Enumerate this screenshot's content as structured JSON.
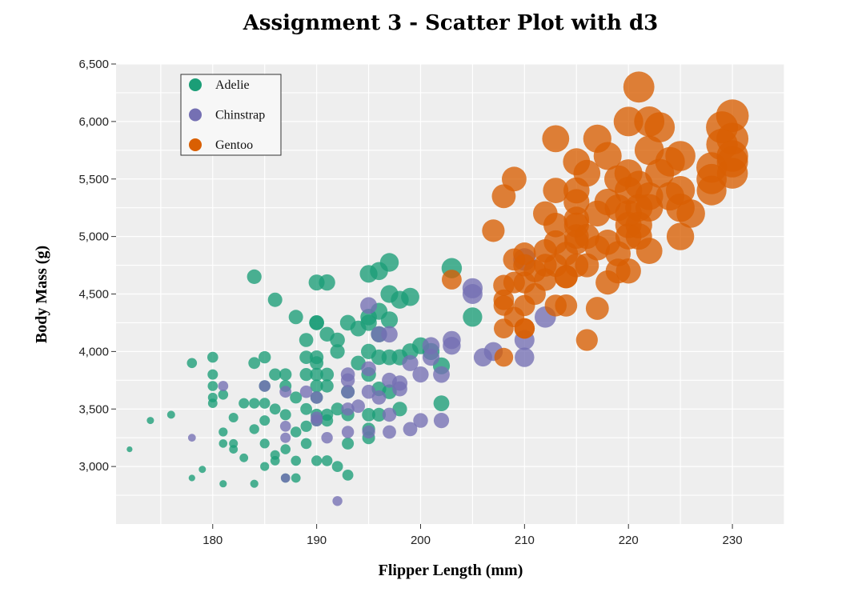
{
  "chart_data": {
    "type": "scatter",
    "title": "Assignment 3 - Scatter Plot with d3",
    "xlabel": "Flipper Length (mm)",
    "ylabel": "Body Mass (g)",
    "xlim": [
      170.7,
      235
    ],
    "ylim": [
      2500,
      6500
    ],
    "x_ticks": [
      180,
      190,
      200,
      210,
      220,
      230
    ],
    "y_ticks": [
      3000,
      3500,
      4000,
      4500,
      5000,
      5500,
      6000,
      6500
    ],
    "x_tick_labels": [
      "180",
      "190",
      "200",
      "210",
      "220",
      "230"
    ],
    "y_tick_labels": [
      "3,000",
      "3,500",
      "4,000",
      "4,500",
      "5,000",
      "5,500",
      "6,000",
      "6,500"
    ],
    "grid": true,
    "legend_position": "top-left",
    "size_encoding": "radius grows with data magnitude",
    "series": [
      {
        "name": "Adelie",
        "color": "#1b9e77",
        "points": [
          [
            172,
            3150
          ],
          [
            174,
            3400
          ],
          [
            176,
            3450
          ],
          [
            178,
            3900
          ],
          [
            178,
            2900
          ],
          [
            179,
            2975
          ],
          [
            180,
            3950
          ],
          [
            180,
            3800
          ],
          [
            180,
            3700
          ],
          [
            180,
            3600
          ],
          [
            180,
            3550
          ],
          [
            181,
            3625
          ],
          [
            181,
            3300
          ],
          [
            181,
            3200
          ],
          [
            181,
            2850
          ],
          [
            182,
            3425
          ],
          [
            182,
            3200
          ],
          [
            182,
            3150
          ],
          [
            183,
            3550
          ],
          [
            183,
            3075
          ],
          [
            184,
            4650
          ],
          [
            184,
            3900
          ],
          [
            184,
            3550
          ],
          [
            184,
            3325
          ],
          [
            184,
            2850
          ],
          [
            185,
            3950
          ],
          [
            185,
            3700
          ],
          [
            185,
            3550
          ],
          [
            185,
            3400
          ],
          [
            185,
            3200
          ],
          [
            185,
            3000
          ],
          [
            186,
            4450
          ],
          [
            186,
            3800
          ],
          [
            186,
            3500
          ],
          [
            186,
            3100
          ],
          [
            186,
            3050
          ],
          [
            187,
            3800
          ],
          [
            187,
            3700
          ],
          [
            187,
            3450
          ],
          [
            187,
            3150
          ],
          [
            187,
            2900
          ],
          [
            188,
            4300
          ],
          [
            188,
            3600
          ],
          [
            188,
            3300
          ],
          [
            188,
            3050
          ],
          [
            188,
            2900
          ],
          [
            189,
            4100
          ],
          [
            189,
            3950
          ],
          [
            189,
            3800
          ],
          [
            189,
            3500
          ],
          [
            189,
            3350
          ],
          [
            189,
            3200
          ],
          [
            190,
            4600
          ],
          [
            190,
            4250
          ],
          [
            190,
            4250
          ],
          [
            190,
            3950
          ],
          [
            190,
            3900
          ],
          [
            190,
            3800
          ],
          [
            190,
            3700
          ],
          [
            190,
            3600
          ],
          [
            190,
            3450
          ],
          [
            190,
            3400
          ],
          [
            190,
            3050
          ],
          [
            191,
            4600
          ],
          [
            191,
            4150
          ],
          [
            191,
            3800
          ],
          [
            191,
            3700
          ],
          [
            191,
            3450
          ],
          [
            191,
            3400
          ],
          [
            191,
            3050
          ],
          [
            192,
            4100
          ],
          [
            192,
            4000
          ],
          [
            192,
            3500
          ],
          [
            192,
            3000
          ],
          [
            193,
            4250
          ],
          [
            193,
            3650
          ],
          [
            193,
            3450
          ],
          [
            193,
            3200
          ],
          [
            193,
            2925
          ],
          [
            194,
            4200
          ],
          [
            194,
            3900
          ],
          [
            195,
            4675
          ],
          [
            195,
            4300
          ],
          [
            195,
            4250
          ],
          [
            195,
            4000
          ],
          [
            195,
            3800
          ],
          [
            195,
            3450
          ],
          [
            195,
            3325
          ],
          [
            195,
            3250
          ],
          [
            196,
            4700
          ],
          [
            196,
            4350
          ],
          [
            196,
            4150
          ],
          [
            196,
            3950
          ],
          [
            196,
            3675
          ],
          [
            196,
            3450
          ],
          [
            197,
            4775
          ],
          [
            197,
            4500
          ],
          [
            197,
            4275
          ],
          [
            197,
            3950
          ],
          [
            197,
            3650
          ],
          [
            198,
            4450
          ],
          [
            198,
            3950
          ],
          [
            198,
            3500
          ],
          [
            199,
            4475
          ],
          [
            199,
            4000
          ],
          [
            200,
            4050
          ],
          [
            201,
            4000
          ],
          [
            202,
            3875
          ],
          [
            202,
            3550
          ],
          [
            203,
            4725
          ],
          [
            205,
            4300
          ]
        ]
      },
      {
        "name": "Chinstrap",
        "color": "#7570b3",
        "points": [
          [
            178,
            3250
          ],
          [
            181,
            3700
          ],
          [
            185,
            3700
          ],
          [
            187,
            3650
          ],
          [
            187,
            3350
          ],
          [
            187,
            3250
          ],
          [
            187,
            2900
          ],
          [
            189,
            3650
          ],
          [
            190,
            3600
          ],
          [
            190,
            3425
          ],
          [
            190,
            3400
          ],
          [
            191,
            3250
          ],
          [
            192,
            2700
          ],
          [
            193,
            3800
          ],
          [
            193,
            3750
          ],
          [
            193,
            3650
          ],
          [
            193,
            3500
          ],
          [
            193,
            3300
          ],
          [
            194,
            3525
          ],
          [
            195,
            4400
          ],
          [
            195,
            3850
          ],
          [
            195,
            3650
          ],
          [
            195,
            3300
          ],
          [
            196,
            4150
          ],
          [
            196,
            3600
          ],
          [
            197,
            4150
          ],
          [
            197,
            3750
          ],
          [
            197,
            3450
          ],
          [
            197,
            3300
          ],
          [
            198,
            3725
          ],
          [
            198,
            3675
          ],
          [
            199,
            3900
          ],
          [
            199,
            3325
          ],
          [
            200,
            3800
          ],
          [
            200,
            3400
          ],
          [
            201,
            4050
          ],
          [
            201,
            3950
          ],
          [
            202,
            3800
          ],
          [
            202,
            3400
          ],
          [
            203,
            4100
          ],
          [
            203,
            4050
          ],
          [
            205,
            4550
          ],
          [
            205,
            4500
          ],
          [
            206,
            3950
          ],
          [
            207,
            4000
          ],
          [
            210,
            4800
          ],
          [
            210,
            4100
          ],
          [
            210,
            3950
          ],
          [
            212,
            4300
          ]
        ]
      },
      {
        "name": "Gentoo",
        "color": "#d95f02",
        "points": [
          [
            203,
            4625
          ],
          [
            207,
            5050
          ],
          [
            208,
            4575
          ],
          [
            208,
            4450
          ],
          [
            208,
            4400
          ],
          [
            208,
            4200
          ],
          [
            208,
            3950
          ],
          [
            208,
            5350
          ],
          [
            209,
            5500
          ],
          [
            209,
            4800
          ],
          [
            209,
            4600
          ],
          [
            209,
            4300
          ],
          [
            210,
            4850
          ],
          [
            210,
            4750
          ],
          [
            210,
            4600
          ],
          [
            210,
            4400
          ],
          [
            210,
            4200
          ],
          [
            210,
            4200
          ],
          [
            211,
            4700
          ],
          [
            211,
            4500
          ],
          [
            212,
            5200
          ],
          [
            212,
            4875
          ],
          [
            212,
            4750
          ],
          [
            212,
            4625
          ],
          [
            213,
            5850
          ],
          [
            213,
            5400
          ],
          [
            213,
            5100
          ],
          [
            213,
            4950
          ],
          [
            213,
            4750
          ],
          [
            213,
            4400
          ],
          [
            214,
            4850
          ],
          [
            214,
            4650
          ],
          [
            214,
            4650
          ],
          [
            214,
            4400
          ],
          [
            215,
            5650
          ],
          [
            215,
            5400
          ],
          [
            215,
            5300
          ],
          [
            215,
            5150
          ],
          [
            215,
            5100
          ],
          [
            215,
            5000
          ],
          [
            215,
            4950
          ],
          [
            215,
            4750
          ],
          [
            216,
            5550
          ],
          [
            216,
            5000
          ],
          [
            216,
            4750
          ],
          [
            216,
            4100
          ],
          [
            217,
            5850
          ],
          [
            217,
            5200
          ],
          [
            217,
            4900
          ],
          [
            217,
            4375
          ],
          [
            218,
            5700
          ],
          [
            218,
            5300
          ],
          [
            218,
            4950
          ],
          [
            218,
            4600
          ],
          [
            219,
            5500
          ],
          [
            219,
            5250
          ],
          [
            219,
            4850
          ],
          [
            219,
            4700
          ],
          [
            220,
            6000
          ],
          [
            220,
            5550
          ],
          [
            220,
            5400
          ],
          [
            220,
            5200
          ],
          [
            220,
            5100
          ],
          [
            220,
            5000
          ],
          [
            220,
            4700
          ],
          [
            221,
            6300
          ],
          [
            221,
            5450
          ],
          [
            221,
            5250
          ],
          [
            221,
            5100
          ],
          [
            221,
            5000
          ],
          [
            222,
            6000
          ],
          [
            222,
            5750
          ],
          [
            222,
            5350
          ],
          [
            222,
            5250
          ],
          [
            222,
            4875
          ],
          [
            223,
            5950
          ],
          [
            223,
            5550
          ],
          [
            224,
            5650
          ],
          [
            224,
            5350
          ],
          [
            225,
            5700
          ],
          [
            225,
            5400
          ],
          [
            225,
            5250
          ],
          [
            225,
            5000
          ],
          [
            226,
            5200
          ],
          [
            228,
            5600
          ],
          [
            228,
            5500
          ],
          [
            228,
            5400
          ],
          [
            229,
            5800
          ],
          [
            229,
            5950
          ],
          [
            230,
            6050
          ],
          [
            230,
            5850
          ],
          [
            230,
            5700
          ],
          [
            230,
            5550
          ],
          [
            230,
            5650
          ]
        ]
      }
    ]
  }
}
